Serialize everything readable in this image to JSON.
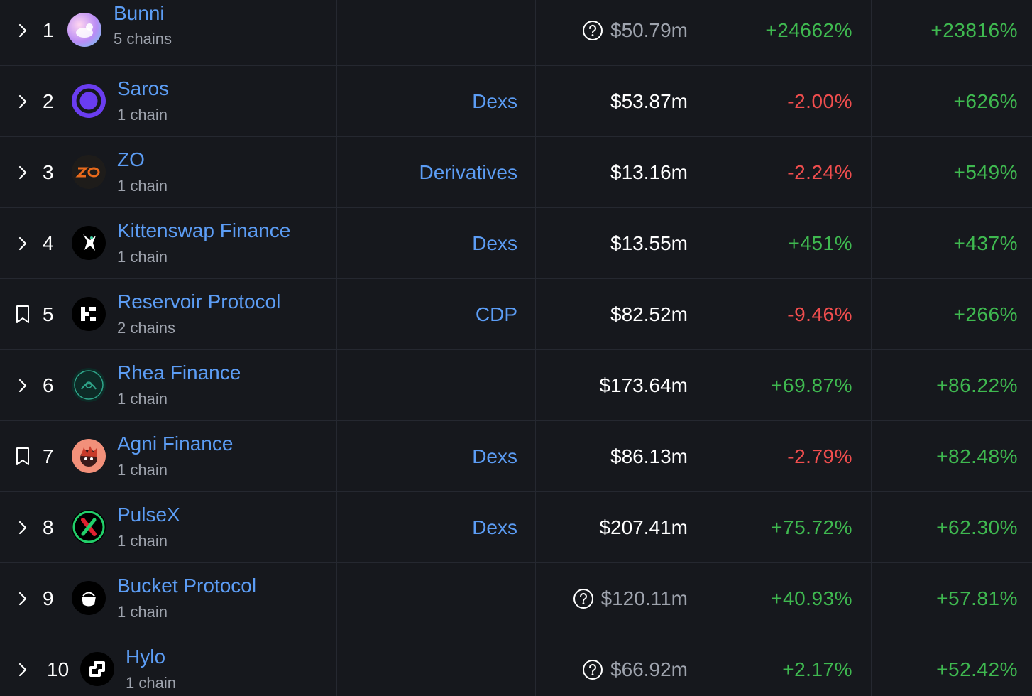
{
  "colors": {
    "background": "#16181d",
    "link": "#5c9df5",
    "positive": "#3fb950",
    "negative": "#f04e4e",
    "muted": "#9ea3ad"
  },
  "rows": [
    {
      "rank": "1",
      "name": "Bunni",
      "chains": "5 chains",
      "category": "",
      "tvl": "$50.79m",
      "tvl_flagged": true,
      "change_1": "+24662%",
      "change_1_dir": "pos",
      "change_2": "+23816%",
      "change_2_dir": "pos",
      "toggle_icon": "chevron-right-icon"
    },
    {
      "rank": "2",
      "name": "Saros",
      "chains": "1 chain",
      "category": "Dexs",
      "tvl": "$53.87m",
      "tvl_flagged": false,
      "change_1": "-2.00%",
      "change_1_dir": "neg",
      "change_2": "+626%",
      "change_2_dir": "pos",
      "toggle_icon": "chevron-right-icon"
    },
    {
      "rank": "3",
      "name": "ZO",
      "chains": "1 chain",
      "category": "Derivatives",
      "tvl": "$13.16m",
      "tvl_flagged": false,
      "change_1": "-2.24%",
      "change_1_dir": "neg",
      "change_2": "+549%",
      "change_2_dir": "pos",
      "toggle_icon": "chevron-right-icon"
    },
    {
      "rank": "4",
      "name": "Kittenswap Finance",
      "chains": "1 chain",
      "category": "Dexs",
      "tvl": "$13.55m",
      "tvl_flagged": false,
      "change_1": "+451%",
      "change_1_dir": "pos",
      "change_2": "+437%",
      "change_2_dir": "pos",
      "toggle_icon": "chevron-right-icon"
    },
    {
      "rank": "5",
      "name": "Reservoir Protocol",
      "chains": "2 chains",
      "category": "CDP",
      "tvl": "$82.52m",
      "tvl_flagged": false,
      "change_1": "-9.46%",
      "change_1_dir": "neg",
      "change_2": "+266%",
      "change_2_dir": "pos",
      "toggle_icon": "bookmark-icon"
    },
    {
      "rank": "6",
      "name": "Rhea Finance",
      "chains": "1 chain",
      "category": "",
      "tvl": "$173.64m",
      "tvl_flagged": false,
      "change_1": "+69.87%",
      "change_1_dir": "pos",
      "change_2": "+86.22%",
      "change_2_dir": "pos",
      "toggle_icon": "chevron-right-icon"
    },
    {
      "rank": "7",
      "name": "Agni Finance",
      "chains": "1 chain",
      "category": "Dexs",
      "tvl": "$86.13m",
      "tvl_flagged": false,
      "change_1": "-2.79%",
      "change_1_dir": "neg",
      "change_2": "+82.48%",
      "change_2_dir": "pos",
      "toggle_icon": "bookmark-icon"
    },
    {
      "rank": "8",
      "name": "PulseX",
      "chains": "1 chain",
      "category": "Dexs",
      "tvl": "$207.41m",
      "tvl_flagged": false,
      "change_1": "+75.72%",
      "change_1_dir": "pos",
      "change_2": "+62.30%",
      "change_2_dir": "pos",
      "toggle_icon": "chevron-right-icon"
    },
    {
      "rank": "9",
      "name": "Bucket Protocol",
      "chains": "1 chain",
      "category": "",
      "tvl": "$120.11m",
      "tvl_flagged": true,
      "change_1": "+40.93%",
      "change_1_dir": "pos",
      "change_2": "+57.81%",
      "change_2_dir": "pos",
      "toggle_icon": "chevron-right-icon"
    },
    {
      "rank": "10",
      "name": "Hylo",
      "chains": "1 chain",
      "category": "",
      "tvl": "$66.92m",
      "tvl_flagged": true,
      "change_1": "+2.17%",
      "change_1_dir": "pos",
      "change_2": "+52.42%",
      "change_2_dir": "pos",
      "toggle_icon": "chevron-right-icon"
    }
  ]
}
